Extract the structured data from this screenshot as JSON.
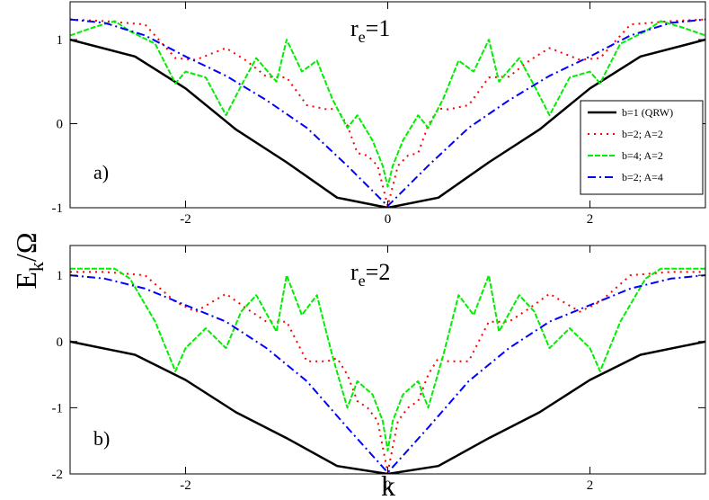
{
  "chart_data": [
    {
      "type": "line",
      "tag": "a)",
      "title": {
        "main": "r",
        "sub": "e",
        "rest": "=1"
      },
      "xlim": [
        -3.14159,
        3.14159
      ],
      "ylim": [
        -1,
        1.45
      ],
      "xticks": [
        -2,
        0,
        2
      ],
      "xticklabels": [
        "-2",
        "0",
        "2"
      ],
      "yticks": [
        -1,
        0,
        1
      ],
      "yticklabels": [
        "-1",
        "0",
        "1"
      ],
      "grid": false,
      "legend_position": "right",
      "series": [
        {
          "name": "b=1 (QRW)",
          "style": "solid",
          "color": "#000000",
          "x": [
            -3.1416,
            -2.5,
            -2.0,
            -1.5,
            -1.0,
            -0.5,
            0,
            0.5,
            1.0,
            1.5,
            2.0,
            2.5,
            3.1416
          ],
          "y": [
            1.0,
            0.8,
            0.42,
            -0.07,
            -0.46,
            -0.88,
            -1.0,
            -0.88,
            -0.46,
            -0.07,
            0.42,
            0.8,
            1.0
          ]
        },
        {
          "name": "b=2; A=2",
          "style": "dotted",
          "color": "#ff0000",
          "x": [
            -3.1416,
            -2.8,
            -2.4,
            -2.1,
            -1.9,
            -1.6,
            -1.4,
            -1.2,
            -1.0,
            -0.8,
            -0.6,
            -0.5,
            -0.4,
            -0.3,
            -0.2,
            -0.1,
            0,
            0.1,
            0.2,
            0.3,
            0.4,
            0.5,
            0.6,
            0.8,
            1.0,
            1.2,
            1.4,
            1.6,
            1.9,
            2.1,
            2.4,
            2.8,
            3.1416
          ],
          "y": [
            1.24,
            1.22,
            1.18,
            0.78,
            0.76,
            0.9,
            0.75,
            0.56,
            0.55,
            0.22,
            0.17,
            0.18,
            -0.02,
            -0.35,
            -0.38,
            -0.5,
            -0.98,
            -0.5,
            -0.38,
            -0.35,
            -0.02,
            0.18,
            0.17,
            0.22,
            0.55,
            0.56,
            0.75,
            0.9,
            0.76,
            0.78,
            1.18,
            1.22,
            1.24
          ]
        },
        {
          "name": "b=4; A=2",
          "style": "dashed",
          "color": "#00ee00",
          "x": [
            -3.1416,
            -2.9,
            -2.7,
            -2.55,
            -2.3,
            -2.1,
            -2.0,
            -1.8,
            -1.6,
            -1.45,
            -1.3,
            -1.1,
            -1.0,
            -0.85,
            -0.7,
            -0.55,
            -0.4,
            -0.3,
            -0.15,
            -0.05,
            0,
            0.05,
            0.15,
            0.3,
            0.4,
            0.55,
            0.7,
            0.85,
            1.0,
            1.1,
            1.3,
            1.45,
            1.6,
            1.8,
            2.0,
            2.1,
            2.3,
            2.55,
            2.7,
            2.9,
            3.1416
          ],
          "y": [
            1.05,
            1.15,
            1.22,
            1.1,
            0.95,
            0.48,
            0.62,
            0.55,
            0.1,
            0.45,
            0.78,
            0.5,
            1.0,
            0.62,
            0.75,
            0.3,
            -0.05,
            0.1,
            -0.2,
            -0.5,
            -0.75,
            -0.5,
            -0.2,
            0.1,
            -0.05,
            0.3,
            0.75,
            0.62,
            1.0,
            0.5,
            0.78,
            0.45,
            0.1,
            0.55,
            0.62,
            0.48,
            0.95,
            1.1,
            1.22,
            1.15,
            1.05
          ]
        },
        {
          "name": "b=2; A=4",
          "style": "dashdot",
          "color": "#0000ff",
          "x": [
            -3.1416,
            -2.8,
            -2.4,
            -2.0,
            -1.6,
            -1.2,
            -0.8,
            -0.4,
            0,
            0.4,
            0.8,
            1.2,
            1.6,
            2.0,
            2.4,
            2.8,
            3.1416
          ],
          "y": [
            1.24,
            1.2,
            1.05,
            0.8,
            0.57,
            0.28,
            -0.05,
            -0.5,
            -0.98,
            -0.5,
            -0.05,
            0.28,
            0.57,
            0.8,
            1.05,
            1.2,
            1.24
          ]
        }
      ]
    },
    {
      "type": "line",
      "tag": "b)",
      "title": {
        "main": "r",
        "sub": "e",
        "rest": "=2"
      },
      "xlim": [
        -3.14159,
        3.14159
      ],
      "ylim": [
        -2,
        1.45
      ],
      "xticks": [
        -2,
        0,
        2
      ],
      "xticklabels": [
        "-2",
        "0",
        "2"
      ],
      "yticks": [
        -2,
        -1,
        0,
        1
      ],
      "yticklabels": [
        "-2",
        "-1",
        "0",
        "1"
      ],
      "grid": false,
      "legend_position": "none",
      "series": [
        {
          "name": "b=1 (QRW)",
          "style": "solid",
          "color": "#000000",
          "x": [
            -3.1416,
            -2.5,
            -2.0,
            -1.5,
            -1.0,
            -0.5,
            0,
            0.5,
            1.0,
            1.5,
            2.0,
            2.5,
            3.1416
          ],
          "y": [
            0.0,
            -0.2,
            -0.58,
            -1.07,
            -1.46,
            -1.88,
            -2.0,
            -1.88,
            -1.46,
            -1.07,
            -0.58,
            -0.2,
            0.0
          ]
        },
        {
          "name": "b=2; A=2",
          "style": "dotted",
          "color": "#ff0000",
          "x": [
            -3.1416,
            -2.8,
            -2.4,
            -2.1,
            -1.9,
            -1.6,
            -1.4,
            -1.2,
            -1.0,
            -0.8,
            -0.6,
            -0.5,
            -0.4,
            -0.3,
            -0.2,
            -0.1,
            0,
            0.1,
            0.2,
            0.3,
            0.4,
            0.5,
            0.6,
            0.8,
            1.0,
            1.2,
            1.4,
            1.6,
            1.9,
            2.1,
            2.4,
            2.8,
            3.1416
          ],
          "y": [
            1.05,
            1.05,
            1.0,
            0.6,
            0.45,
            0.72,
            0.5,
            0.3,
            0.3,
            -0.3,
            -0.3,
            -0.25,
            -0.5,
            -0.9,
            -1.0,
            -1.2,
            -1.98,
            -1.2,
            -1.0,
            -0.9,
            -0.5,
            -0.25,
            -0.3,
            -0.3,
            0.3,
            0.3,
            0.5,
            0.72,
            0.45,
            0.6,
            1.0,
            1.05,
            1.05
          ]
        },
        {
          "name": "b=4; A=2",
          "style": "dashed",
          "color": "#00ee00",
          "x": [
            -3.1416,
            -2.9,
            -2.7,
            -2.55,
            -2.3,
            -2.1,
            -2.0,
            -1.8,
            -1.6,
            -1.45,
            -1.3,
            -1.1,
            -1.0,
            -0.85,
            -0.7,
            -0.55,
            -0.4,
            -0.3,
            -0.15,
            -0.05,
            0,
            0.05,
            0.15,
            0.3,
            0.4,
            0.55,
            0.7,
            0.85,
            1.0,
            1.1,
            1.3,
            1.45,
            1.6,
            1.8,
            2.0,
            2.1,
            2.3,
            2.55,
            2.7,
            2.9,
            3.1416
          ],
          "y": [
            1.1,
            1.1,
            1.1,
            0.95,
            0.3,
            -0.45,
            -0.1,
            0.2,
            -0.1,
            0.45,
            0.7,
            0.15,
            1.0,
            0.4,
            0.7,
            -0.2,
            -1.0,
            -0.6,
            -0.8,
            -1.2,
            -1.65,
            -1.2,
            -0.8,
            -0.6,
            -1.0,
            -0.2,
            0.7,
            0.4,
            1.0,
            0.15,
            0.7,
            0.45,
            -0.1,
            0.2,
            -0.1,
            -0.45,
            0.3,
            0.95,
            1.1,
            1.1,
            1.1
          ]
        },
        {
          "name": "b=2; A=4",
          "style": "dashdot",
          "color": "#0000ff",
          "x": [
            -3.1416,
            -2.8,
            -2.4,
            -2.0,
            -1.6,
            -1.2,
            -0.8,
            -0.4,
            0,
            0.4,
            0.8,
            1.2,
            1.6,
            2.0,
            2.4,
            2.8,
            3.1416
          ],
          "y": [
            1.0,
            0.95,
            0.8,
            0.55,
            0.3,
            -0.1,
            -0.6,
            -1.3,
            -1.98,
            -1.3,
            -0.6,
            -0.1,
            0.3,
            0.55,
            0.8,
            0.95,
            1.0
          ]
        }
      ]
    }
  ],
  "axes": {
    "xlabel": "k",
    "ylabel": {
      "main": "E",
      "sub": "k",
      "rest": "/Ω"
    }
  }
}
